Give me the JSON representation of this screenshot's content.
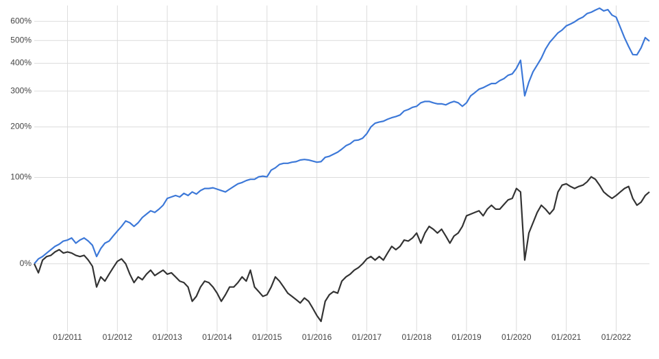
{
  "chart_data": {
    "type": "line",
    "yscale": "log-growth",
    "grid": true,
    "x": [
      "05/2010",
      "06/2010",
      "07/2010",
      "08/2010",
      "09/2010",
      "10/2010",
      "11/2010",
      "12/2010",
      "01/2011",
      "02/2011",
      "03/2011",
      "04/2011",
      "05/2011",
      "06/2011",
      "07/2011",
      "08/2011",
      "09/2011",
      "10/2011",
      "11/2011",
      "12/2011",
      "01/2012",
      "02/2012",
      "03/2012",
      "04/2012",
      "05/2012",
      "06/2012",
      "07/2012",
      "08/2012",
      "09/2012",
      "10/2012",
      "11/2012",
      "12/2012",
      "01/2013",
      "02/2013",
      "03/2013",
      "04/2013",
      "05/2013",
      "06/2013",
      "07/2013",
      "08/2013",
      "09/2013",
      "10/2013",
      "11/2013",
      "12/2013",
      "01/2014",
      "02/2014",
      "03/2014",
      "04/2014",
      "05/2014",
      "06/2014",
      "07/2014",
      "08/2014",
      "09/2014",
      "10/2014",
      "11/2014",
      "12/2014",
      "01/2015",
      "02/2015",
      "03/2015",
      "04/2015",
      "05/2015",
      "06/2015",
      "07/2015",
      "08/2015",
      "09/2015",
      "10/2015",
      "11/2015",
      "12/2015",
      "01/2016",
      "02/2016",
      "03/2016",
      "04/2016",
      "05/2016",
      "06/2016",
      "07/2016",
      "08/2016",
      "09/2016",
      "10/2016",
      "11/2016",
      "12/2016",
      "01/2017",
      "02/2017",
      "03/2017",
      "04/2017",
      "05/2017",
      "06/2017",
      "07/2017",
      "08/2017",
      "09/2017",
      "10/2017",
      "11/2017",
      "12/2017",
      "01/2018",
      "02/2018",
      "03/2018",
      "04/2018",
      "05/2018",
      "06/2018",
      "07/2018",
      "08/2018",
      "09/2018",
      "10/2018",
      "11/2018",
      "12/2018",
      "01/2019",
      "02/2019",
      "03/2019",
      "04/2019",
      "05/2019",
      "06/2019",
      "07/2019",
      "08/2019",
      "09/2019",
      "10/2019",
      "11/2019",
      "12/2019",
      "01/2020",
      "02/2020",
      "03/2020",
      "04/2020",
      "05/2020",
      "06/2020",
      "07/2020",
      "08/2020",
      "09/2020",
      "10/2020",
      "11/2020",
      "12/2020",
      "01/2021",
      "02/2021",
      "03/2021",
      "04/2021",
      "05/2021",
      "06/2021",
      "07/2021",
      "08/2021",
      "09/2021",
      "10/2021",
      "11/2021",
      "12/2021",
      "01/2022",
      "02/2022",
      "03/2022",
      "04/2022",
      "05/2022",
      "06/2022",
      "07/2022",
      "08/2022",
      "09/2022"
    ],
    "series": [
      {
        "color": "#3c78d8",
        "values": [
          0,
          4,
          6,
          9,
          12,
          15,
          17,
          20,
          21,
          23,
          18,
          21,
          23,
          20,
          16,
          6,
          13,
          18,
          20,
          25,
          30,
          35,
          41,
          39,
          35,
          39,
          45,
          49,
          53,
          51,
          55,
          60,
          69,
          71,
          73,
          71,
          76,
          73,
          78,
          75,
          80,
          83,
          83,
          84,
          82,
          80,
          78,
          82,
          86,
          90,
          92,
          95,
          97,
          97,
          101,
          102,
          101,
          112,
          116,
          122,
          124,
          124,
          126,
          127,
          130,
          131,
          130,
          128,
          126,
          127,
          135,
          137,
          141,
          145,
          151,
          158,
          162,
          169,
          170,
          174,
          184,
          200,
          209,
          212,
          214,
          219,
          223,
          226,
          230,
          241,
          245,
          251,
          254,
          264,
          268,
          268,
          264,
          261,
          261,
          258,
          264,
          268,
          264,
          254,
          264,
          285,
          295,
          306,
          311,
          318,
          325,
          325,
          335,
          342,
          354,
          359,
          380,
          412,
          285,
          330,
          367,
          393,
          421,
          460,
          491,
          514,
          538,
          553,
          575,
          585,
          597,
          613,
          624,
          645,
          653,
          666,
          678,
          661,
          669,
          636,
          624,
          567,
          514,
          472,
          436,
          435,
          466,
          514,
          497
        ]
      },
      {
        "color": "#333333",
        "values": [
          0,
          -7,
          3,
          6,
          7,
          10,
          12,
          9,
          10,
          9,
          7,
          6,
          7,
          3,
          -2,
          -17,
          -10,
          -13,
          -8,
          -3,
          2,
          4,
          0,
          -8,
          -14,
          -10,
          -12,
          -8,
          -5,
          -9,
          -7,
          -5,
          -8,
          -7,
          -10,
          -13,
          -14,
          -17,
          -26,
          -23,
          -17,
          -13,
          -14,
          -17,
          -21,
          -26,
          -22,
          -17,
          -17,
          -14,
          -10,
          -13,
          -5,
          -17,
          -20,
          -23,
          -22,
          -17,
          -10,
          -13,
          -17,
          -21,
          -23,
          -25,
          -27,
          -24,
          -26,
          -30,
          -34,
          -37,
          -26,
          -22,
          -20,
          -21,
          -13,
          -10,
          -8,
          -5,
          -3,
          0,
          4,
          6,
          3,
          6,
          3,
          9,
          15,
          12,
          15,
          21,
          20,
          23,
          28,
          18,
          28,
          35,
          32,
          28,
          32,
          25,
          18,
          25,
          28,
          35,
          47,
          49,
          51,
          53,
          47,
          55,
          60,
          55,
          55,
          61,
          67,
          69,
          83,
          78,
          3,
          28,
          39,
          51,
          60,
          55,
          49,
          55,
          78,
          88,
          90,
          86,
          83,
          86,
          88,
          93,
          101,
          97,
          88,
          78,
          73,
          69,
          73,
          78,
          83,
          86,
          69,
          60,
          64,
          73,
          78
        ]
      }
    ],
    "xlim": [
      "05/2010",
      "09/2022"
    ],
    "xticks": [
      "01/2011",
      "01/2012",
      "01/2013",
      "01/2014",
      "01/2015",
      "01/2016",
      "01/2017",
      "01/2018",
      "01/2019",
      "01/2020",
      "01/2021",
      "01/2022"
    ],
    "ylim": [
      -42,
      695
    ],
    "yticks": [
      {
        "value": 0,
        "label": "0%"
      },
      {
        "value": 100,
        "label": "100%"
      },
      {
        "value": 200,
        "label": "200%"
      },
      {
        "value": 300,
        "label": "300%"
      },
      {
        "value": 400,
        "label": "400%"
      },
      {
        "value": 500,
        "label": "500%"
      },
      {
        "value": 600,
        "label": "600%"
      }
    ]
  }
}
